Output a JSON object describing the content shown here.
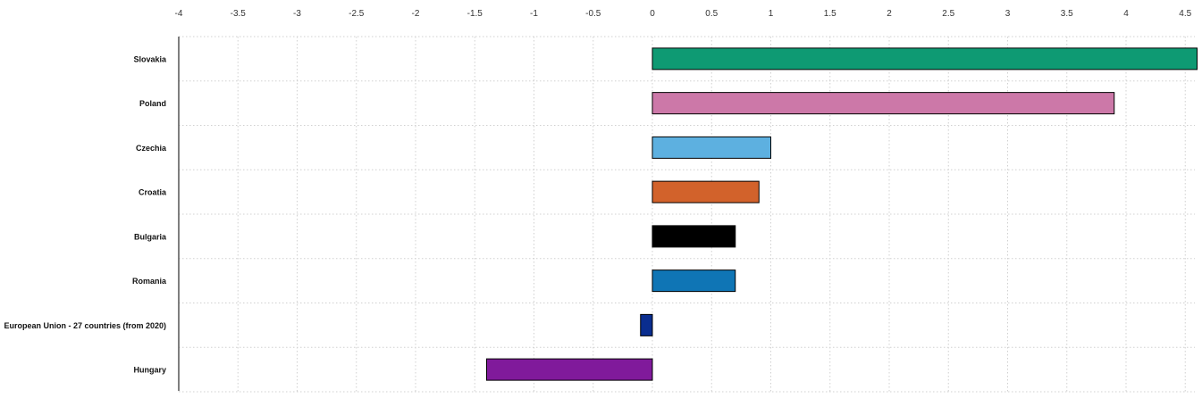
{
  "chart_data": {
    "type": "bar",
    "orientation": "horizontal",
    "title": "",
    "xlabel": "",
    "ylabel": "",
    "categories": [
      "Slovakia",
      "Poland",
      "Czechia",
      "Croatia",
      "Bulgaria",
      "Romania",
      "European Union - 27 countries (from 2020)",
      "Hungary"
    ],
    "values": [
      4.6,
      3.9,
      1.0,
      0.9,
      0.7,
      0.7,
      -0.1,
      -1.4
    ],
    "colors": [
      "#0e9a73",
      "#cc78a8",
      "#5db0e0",
      "#d2622b",
      "#000000",
      "#0f75b5",
      "#0a2d8f",
      "#801a9b"
    ],
    "xlim": [
      -4,
      4.6
    ],
    "xticks": [
      -4,
      -3.5,
      -3,
      -2.5,
      -2,
      -1.5,
      -1,
      -0.5,
      0,
      0.5,
      1,
      1.5,
      2,
      2.5,
      3,
      3.5,
      4,
      4.5
    ],
    "xtick_labels": [
      "-4",
      "-3.5",
      "-3",
      "-2.5",
      "-2",
      "-1.5",
      "-1",
      "-0.5",
      "0",
      "0.5",
      "1",
      "1.5",
      "2",
      "2.5",
      "3",
      "3.5",
      "4",
      "4.5"
    ],
    "grid": true,
    "legend": "none",
    "axis_position": "top"
  }
}
